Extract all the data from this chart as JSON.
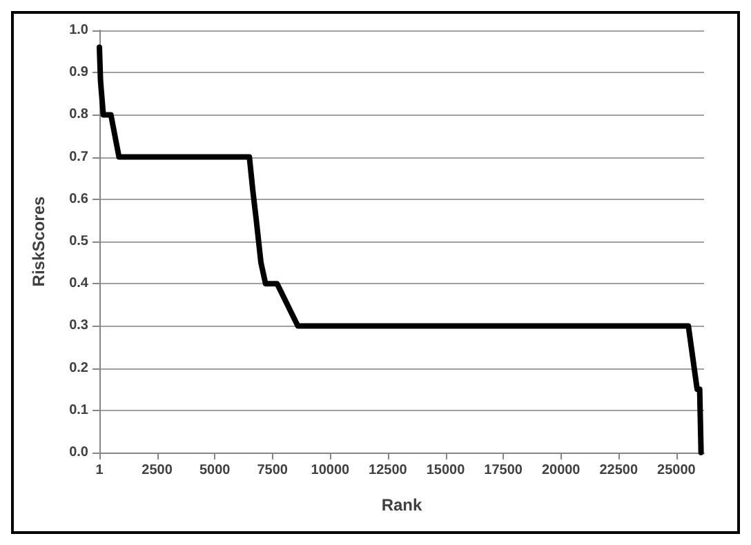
{
  "chart_data": {
    "type": "line",
    "xlabel": "Rank",
    "ylabel": "RiskScores",
    "x": [
      1,
      50,
      170,
      500,
      850,
      6500,
      6650,
      6800,
      7000,
      7200,
      7700,
      8600,
      25520,
      25900,
      26010,
      26070
    ],
    "series": [
      {
        "color": "#000000",
        "values": [
          0.96,
          0.88,
          0.8,
          0.8,
          0.7,
          0.7,
          0.62,
          0.55,
          0.45,
          0.4,
          0.4,
          0.3,
          0.3,
          0.15,
          0.15,
          0.0
        ]
      }
    ],
    "xlim": [
      1,
      26200
    ],
    "xticks": [
      1,
      2500,
      5000,
      7500,
      10000,
      12500,
      15000,
      17500,
      20000,
      22500,
      25000
    ],
    "ylim": [
      0,
      1
    ],
    "yticks": [
      {
        "value": 0,
        "label": "0.0"
      },
      0.1,
      0.2,
      0.3,
      0.4,
      0.5,
      0.6,
      0.7,
      0.8,
      0.9,
      {
        "value": 1,
        "label": "1.0"
      }
    ],
    "grid": "y"
  }
}
